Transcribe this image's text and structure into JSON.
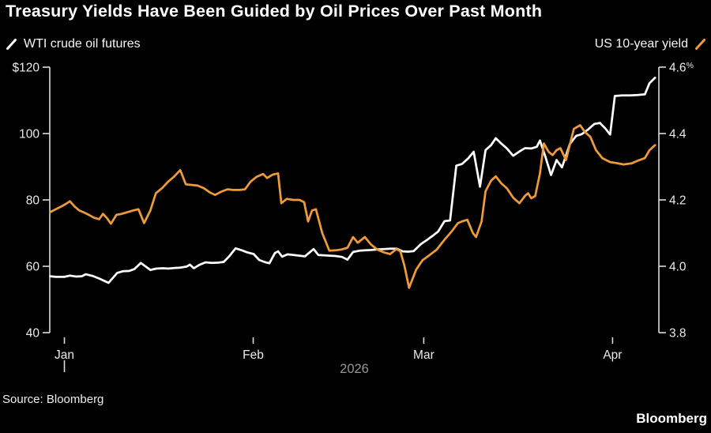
{
  "title": "Treasury Yields Have Been Guided by Oil Prices Over Past Month",
  "legend": {
    "left_label": "WTI crude oil futures",
    "right_label": "US 10-year yield"
  },
  "footer": {
    "source": "Source: Bloomberg",
    "brand": "Bloomberg"
  },
  "colors": {
    "background": "#000000",
    "wti_line": "#fdfdfb",
    "yield_line": "#ef9a3a",
    "axis": "#dcdcd8",
    "tick_text": "#ebebe7",
    "muted_text": "#979793"
  },
  "chart_data": {
    "type": "line",
    "title": "Treasury Yields Have Been Guided by Oil Prices Over Past Month",
    "grid": false,
    "legend_position": "top",
    "x_axis": {
      "unit": "days since Jan 1, 2026",
      "range": [
        -2.4,
        97.6
      ],
      "ticks": [
        {
          "t": 0,
          "label": "Jan"
        },
        {
          "t": 31,
          "label": "Feb"
        },
        {
          "t": 59,
          "label": "Mar"
        },
        {
          "t": 90,
          "label": "Apr"
        }
      ],
      "year_label": "2026"
    },
    "left_axis": {
      "series": "WTI crude oil futures",
      "range": [
        40,
        120
      ],
      "ticks": [
        {
          "v": 120,
          "label": "$120"
        },
        {
          "v": 100,
          "label": "100"
        },
        {
          "v": 80,
          "label": "80"
        },
        {
          "v": 60,
          "label": "60"
        },
        {
          "v": 40,
          "label": "40"
        }
      ]
    },
    "right_axis": {
      "series": "US 10-year yield",
      "range": [
        3.8,
        4.6
      ],
      "ticks": [
        {
          "v": 4.6,
          "label": "4.6%"
        },
        {
          "v": 4.4,
          "label": "4.4"
        },
        {
          "v": 4.2,
          "label": "4.2"
        },
        {
          "v": 4.0,
          "label": "4.0"
        },
        {
          "v": 3.8,
          "label": "3.8"
        }
      ]
    },
    "series": [
      {
        "name": "WTI crude oil futures",
        "axis": "left",
        "color": "#fdfdfb",
        "points": [
          [
            -2.33,
            57.0
          ],
          [
            -1.42,
            56.8
          ],
          [
            0,
            56.8
          ],
          [
            0.91,
            57.2
          ],
          [
            1.94,
            56.9
          ],
          [
            2.85,
            57.0
          ],
          [
            3.5,
            57.6
          ],
          [
            4.79,
            57.0
          ],
          [
            5.7,
            56.3
          ],
          [
            7.25,
            55.0
          ],
          [
            8.68,
            58.0
          ],
          [
            9.58,
            58.5
          ],
          [
            10.62,
            58.6
          ],
          [
            11.52,
            59.2
          ],
          [
            12.56,
            61.0
          ],
          [
            14.11,
            58.9
          ],
          [
            15.15,
            59.3
          ],
          [
            16.19,
            59.4
          ],
          [
            17.09,
            59.3
          ],
          [
            18.13,
            59.5
          ],
          [
            19.03,
            59.6
          ],
          [
            20.07,
            59.9
          ],
          [
            20.59,
            60.5
          ],
          [
            21.24,
            59.4
          ],
          [
            22.14,
            60.4
          ],
          [
            23.18,
            61.2
          ],
          [
            24.21,
            61.0
          ],
          [
            25.25,
            61.1
          ],
          [
            26.16,
            61.3
          ],
          [
            27.06,
            63.0
          ],
          [
            28.1,
            65.4
          ],
          [
            29.13,
            64.8
          ],
          [
            30.04,
            64.2
          ],
          [
            31.07,
            63.7
          ],
          [
            31.98,
            61.9
          ],
          [
            33.02,
            61.2
          ],
          [
            33.66,
            60.9
          ],
          [
            34.57,
            64.0
          ],
          [
            35.09,
            64.5
          ],
          [
            35.74,
            62.9
          ],
          [
            36.64,
            63.6
          ],
          [
            37.68,
            63.4
          ],
          [
            38.58,
            63.2
          ],
          [
            39.49,
            63.0
          ],
          [
            40.92,
            65.2
          ],
          [
            41.69,
            63.4
          ],
          [
            42.6,
            63.3
          ],
          [
            43.64,
            63.2
          ],
          [
            44.54,
            63.1
          ],
          [
            45.58,
            62.8
          ],
          [
            46.49,
            62.0
          ],
          [
            47.39,
            64.3
          ],
          [
            48.43,
            64.7
          ],
          [
            49.46,
            64.8
          ],
          [
            50.37,
            64.9
          ],
          [
            51.41,
            65.1
          ],
          [
            52.44,
            65.2
          ],
          [
            53.48,
            65.3
          ],
          [
            54.52,
            65.3
          ],
          [
            55.55,
            64.5
          ],
          [
            56.46,
            64.4
          ],
          [
            57.36,
            64.6
          ],
          [
            58.53,
            66.7
          ],
          [
            59.43,
            67.8
          ],
          [
            60.47,
            69.2
          ],
          [
            61.38,
            70.5
          ],
          [
            62.41,
            73.6
          ],
          [
            63.32,
            73.8
          ],
          [
            64.35,
            90.3
          ],
          [
            65.26,
            90.8
          ],
          [
            66.29,
            92.5
          ],
          [
            67.2,
            94.5
          ],
          [
            68.24,
            84.0
          ],
          [
            69.14,
            95.0
          ],
          [
            70.05,
            96.5
          ],
          [
            70.83,
            98.6
          ],
          [
            71.73,
            97.0
          ],
          [
            72.64,
            95.5
          ],
          [
            73.68,
            93.3
          ],
          [
            74.71,
            94.6
          ],
          [
            75.62,
            95.6
          ],
          [
            76.65,
            95.5
          ],
          [
            77.56,
            96.0
          ],
          [
            78.08,
            97.9
          ],
          [
            78.98,
            93.0
          ],
          [
            79.89,
            87.5
          ],
          [
            80.8,
            92.0
          ],
          [
            81.7,
            89.8
          ],
          [
            83.0,
            96.9
          ],
          [
            84.03,
            99.3
          ],
          [
            84.94,
            99.8
          ],
          [
            85.97,
            101.2
          ],
          [
            87.01,
            102.9
          ],
          [
            87.92,
            103.2
          ],
          [
            88.82,
            101.5
          ],
          [
            89.6,
            99.7
          ],
          [
            90.38,
            111.3
          ],
          [
            91.54,
            111.5
          ],
          [
            92.84,
            111.5
          ],
          [
            94.13,
            111.6
          ],
          [
            95.3,
            111.8
          ],
          [
            96.07,
            115.2
          ],
          [
            96.98,
            116.8
          ]
        ]
      },
      {
        "name": "US 10-year yield",
        "axis": "right",
        "color": "#ef9a3a",
        "points": [
          [
            -2.33,
            4.163
          ],
          [
            -1.42,
            4.172
          ],
          [
            -0.52,
            4.18
          ],
          [
            0.26,
            4.188
          ],
          [
            0.91,
            4.196
          ],
          [
            1.68,
            4.18
          ],
          [
            2.46,
            4.168
          ],
          [
            3.24,
            4.162
          ],
          [
            4.01,
            4.155
          ],
          [
            4.92,
            4.146
          ],
          [
            5.7,
            4.142
          ],
          [
            6.34,
            4.158
          ],
          [
            6.99,
            4.145
          ],
          [
            7.64,
            4.128
          ],
          [
            8.55,
            4.155
          ],
          [
            9.45,
            4.158
          ],
          [
            10.36,
            4.163
          ],
          [
            11.26,
            4.168
          ],
          [
            12.17,
            4.172
          ],
          [
            13.08,
            4.13
          ],
          [
            14.11,
            4.168
          ],
          [
            15.02,
            4.22
          ],
          [
            16.06,
            4.236
          ],
          [
            17.09,
            4.256
          ],
          [
            18.0,
            4.27
          ],
          [
            19.03,
            4.29
          ],
          [
            19.94,
            4.247
          ],
          [
            20.98,
            4.245
          ],
          [
            21.88,
            4.243
          ],
          [
            22.92,
            4.235
          ],
          [
            23.83,
            4.223
          ],
          [
            24.73,
            4.215
          ],
          [
            25.77,
            4.225
          ],
          [
            26.8,
            4.232
          ],
          [
            27.71,
            4.23
          ],
          [
            28.75,
            4.23
          ],
          [
            29.65,
            4.232
          ],
          [
            30.56,
            4.255
          ],
          [
            31.59,
            4.27
          ],
          [
            32.63,
            4.278
          ],
          [
            33.28,
            4.266
          ],
          [
            34.18,
            4.276
          ],
          [
            35.09,
            4.28
          ],
          [
            35.61,
            4.19
          ],
          [
            36.51,
            4.203
          ],
          [
            37.55,
            4.2
          ],
          [
            38.58,
            4.2
          ],
          [
            39.36,
            4.193
          ],
          [
            40.01,
            4.135
          ],
          [
            40.66,
            4.168
          ],
          [
            41.3,
            4.172
          ],
          [
            42.34,
            4.1
          ],
          [
            43.5,
            4.047
          ],
          [
            44.54,
            4.048
          ],
          [
            45.58,
            4.051
          ],
          [
            46.49,
            4.056
          ],
          [
            47.39,
            4.088
          ],
          [
            48.17,
            4.071
          ],
          [
            49.33,
            4.088
          ],
          [
            50.37,
            4.065
          ],
          [
            51.41,
            4.05
          ],
          [
            52.44,
            4.042
          ],
          [
            53.48,
            4.037
          ],
          [
            54.52,
            4.052
          ],
          [
            55.16,
            4.045
          ],
          [
            55.81,
            4.003
          ],
          [
            56.59,
            3.935
          ],
          [
            57.75,
            3.99
          ],
          [
            58.79,
            4.018
          ],
          [
            59.82,
            4.032
          ],
          [
            61.12,
            4.05
          ],
          [
            62.41,
            4.08
          ],
          [
            63.58,
            4.105
          ],
          [
            64.61,
            4.13
          ],
          [
            65.39,
            4.136
          ],
          [
            66.16,
            4.14
          ],
          [
            67.07,
            4.1
          ],
          [
            67.59,
            4.088
          ],
          [
            68.49,
            4.135
          ],
          [
            69.14,
            4.226
          ],
          [
            70.05,
            4.258
          ],
          [
            70.83,
            4.271
          ],
          [
            71.73,
            4.25
          ],
          [
            72.64,
            4.235
          ],
          [
            73.68,
            4.207
          ],
          [
            74.71,
            4.19
          ],
          [
            75.62,
            4.212
          ],
          [
            76.13,
            4.22
          ],
          [
            76.65,
            4.205
          ],
          [
            77.3,
            4.212
          ],
          [
            78.08,
            4.28
          ],
          [
            78.72,
            4.37
          ],
          [
            79.5,
            4.345
          ],
          [
            80.15,
            4.335
          ],
          [
            80.8,
            4.35
          ],
          [
            81.44,
            4.356
          ],
          [
            82.35,
            4.32
          ],
          [
            83.64,
            4.414
          ],
          [
            84.68,
            4.425
          ],
          [
            85.45,
            4.405
          ],
          [
            86.36,
            4.39
          ],
          [
            87.27,
            4.35
          ],
          [
            88.31,
            4.326
          ],
          [
            89.6,
            4.314
          ],
          [
            90.64,
            4.311
          ],
          [
            91.8,
            4.307
          ],
          [
            93.1,
            4.31
          ],
          [
            94.13,
            4.318
          ],
          [
            95.3,
            4.326
          ],
          [
            96.07,
            4.35
          ],
          [
            96.98,
            4.365
          ]
        ]
      }
    ]
  }
}
